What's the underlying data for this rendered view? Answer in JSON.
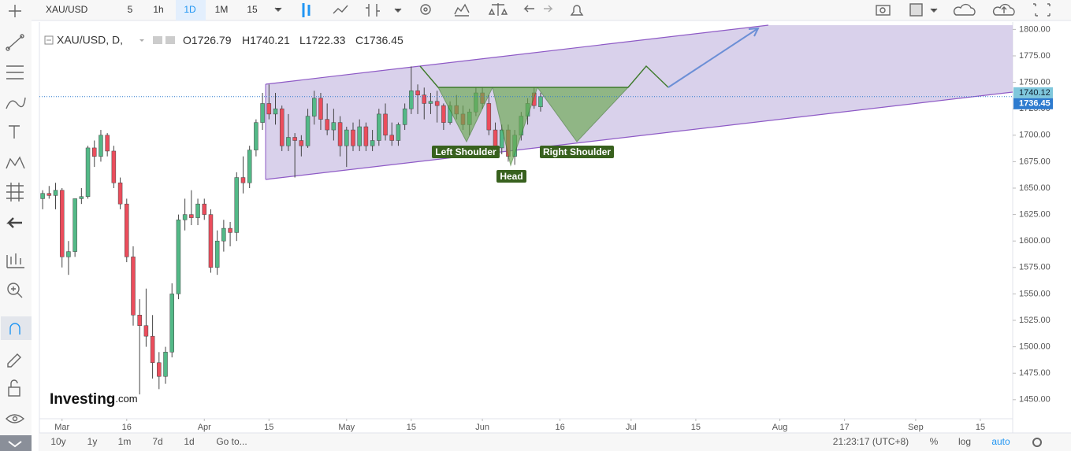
{
  "ui": {
    "symbol": "XAU/USD",
    "intervals": [
      "5",
      "1h",
      "1D",
      "1M",
      "15"
    ],
    "active_interval_index": 2,
    "ranges": [
      "10y",
      "1y",
      "1m",
      "7d",
      "1d",
      "Go to..."
    ],
    "clock": "21:23:17 (UTC+8)",
    "scale_options": [
      "%",
      "log",
      "auto"
    ],
    "logo": "Investing",
    "logo_suffix": ".com"
  },
  "chart_data": {
    "type": "candlestick",
    "title": "XAU/USD, D,",
    "ohlc_prefixes": [
      "O",
      "H",
      "L",
      "C"
    ],
    "up_color": "#53b987",
    "down_color": "#eb4d5c",
    "x": [
      0,
      1,
      2,
      3,
      4,
      5,
      6,
      7,
      8,
      9,
      10,
      11,
      12,
      13,
      14,
      15,
      16,
      17,
      18,
      19,
      20,
      21,
      22,
      23,
      24,
      25,
      26,
      27,
      28,
      29,
      30,
      31,
      32,
      33,
      34,
      35,
      36,
      37,
      38,
      39,
      40,
      41,
      42,
      43,
      44,
      45,
      46,
      47,
      48,
      49,
      50,
      51,
      52,
      53,
      54,
      55,
      56,
      57,
      58,
      59,
      60,
      61,
      62,
      63,
      64,
      65,
      66,
      67,
      68,
      69,
      70,
      71,
      72,
      73,
      74,
      75,
      76,
      77
    ],
    "candles": [
      [
        1640,
        1648,
        1630,
        1645
      ],
      [
        1645,
        1652,
        1640,
        1643
      ],
      [
        1643,
        1655,
        1630,
        1648
      ],
      [
        1648,
        1650,
        1575,
        1585
      ],
      [
        1585,
        1600,
        1568,
        1590
      ],
      [
        1590,
        1640,
        1585,
        1640
      ],
      [
        1640,
        1650,
        1635,
        1642
      ],
      [
        1642,
        1690,
        1640,
        1688
      ],
      [
        1688,
        1695,
        1670,
        1680
      ],
      [
        1680,
        1705,
        1675,
        1700
      ],
      [
        1700,
        1702,
        1680,
        1685
      ],
      [
        1685,
        1690,
        1650,
        1655
      ],
      [
        1655,
        1660,
        1630,
        1635
      ],
      [
        1635,
        1640,
        1580,
        1585
      ],
      [
        1585,
        1595,
        1520,
        1530
      ],
      [
        1530,
        1545,
        1455,
        1520
      ],
      [
        1520,
        1555,
        1500,
        1510
      ],
      [
        1510,
        1530,
        1470,
        1485
      ],
      [
        1485,
        1495,
        1460,
        1472
      ],
      [
        1472,
        1500,
        1465,
        1495
      ],
      [
        1495,
        1560,
        1490,
        1550
      ],
      [
        1550,
        1625,
        1545,
        1620
      ],
      [
        1620,
        1640,
        1610,
        1625
      ],
      [
        1625,
        1648,
        1615,
        1622
      ],
      [
        1622,
        1640,
        1615,
        1635
      ],
      [
        1635,
        1640,
        1620,
        1625
      ],
      [
        1625,
        1630,
        1570,
        1575
      ],
      [
        1575,
        1610,
        1568,
        1600
      ],
      [
        1600,
        1620,
        1590,
        1612
      ],
      [
        1612,
        1618,
        1595,
        1608
      ],
      [
        1608,
        1665,
        1600,
        1660
      ],
      [
        1660,
        1680,
        1645,
        1655
      ],
      [
        1655,
        1690,
        1650,
        1686
      ],
      [
        1686,
        1715,
        1680,
        1712
      ],
      [
        1712,
        1740,
        1705,
        1730
      ],
      [
        1730,
        1748,
        1715,
        1720
      ],
      [
        1720,
        1740,
        1710,
        1725
      ],
      [
        1725,
        1728,
        1685,
        1690
      ],
      [
        1690,
        1720,
        1685,
        1698
      ],
      [
        1698,
        1702,
        1660,
        1695
      ],
      [
        1695,
        1700,
        1680,
        1690
      ],
      [
        1690,
        1725,
        1688,
        1718
      ],
      [
        1718,
        1742,
        1710,
        1735
      ],
      [
        1735,
        1740,
        1705,
        1715
      ],
      [
        1715,
        1730,
        1700,
        1705
      ],
      [
        1705,
        1725,
        1695,
        1712
      ],
      [
        1712,
        1718,
        1680,
        1690
      ],
      [
        1690,
        1708,
        1670,
        1705
      ],
      [
        1705,
        1712,
        1685,
        1690
      ],
      [
        1690,
        1715,
        1685,
        1708
      ],
      [
        1708,
        1712,
        1685,
        1690
      ],
      [
        1690,
        1705,
        1685,
        1695
      ],
      [
        1695,
        1725,
        1690,
        1720
      ],
      [
        1720,
        1730,
        1695,
        1700
      ],
      [
        1700,
        1712,
        1690,
        1695
      ],
      [
        1695,
        1712,
        1690,
        1710
      ],
      [
        1710,
        1730,
        1705,
        1725
      ],
      [
        1725,
        1765,
        1720,
        1742
      ],
      [
        1742,
        1748,
        1720,
        1738
      ],
      [
        1738,
        1745,
        1715,
        1730
      ],
      [
        1730,
        1740,
        1720,
        1732
      ],
      [
        1732,
        1742,
        1712,
        1728
      ],
      [
        1728,
        1730,
        1705,
        1712
      ],
      [
        1712,
        1732,
        1710,
        1728
      ],
      [
        1728,
        1738,
        1715,
        1720
      ],
      [
        1720,
        1728,
        1705,
        1710
      ],
      [
        1710,
        1725,
        1700,
        1722
      ],
      [
        1722,
        1745,
        1718,
        1740
      ],
      [
        1740,
        1745,
        1725,
        1730
      ],
      [
        1730,
        1738,
        1700,
        1705
      ],
      [
        1705,
        1712,
        1680,
        1688
      ],
      [
        1688,
        1710,
        1682,
        1705
      ],
      [
        1705,
        1710,
        1675,
        1680
      ],
      [
        1680,
        1705,
        1672,
        1700
      ],
      [
        1700,
        1722,
        1695,
        1718
      ],
      [
        1718,
        1735,
        1710,
        1730
      ],
      [
        1740,
        1745,
        1725,
        1728
      ],
      [
        1726.79,
        1740.21,
        1722.33,
        1736.45
      ]
    ],
    "xlim": [
      -0.5,
      150
    ],
    "xticks": [
      {
        "value": 3,
        "label": "Mar"
      },
      {
        "value": 13,
        "label": "16"
      },
      {
        "value": 25,
        "label": "Apr"
      },
      {
        "value": 35,
        "label": "15"
      },
      {
        "value": 47,
        "label": "May"
      },
      {
        "value": 57,
        "label": "15"
      },
      {
        "value": 68,
        "label": "Jun"
      },
      {
        "value": 80,
        "label": "16"
      },
      {
        "value": 91,
        "label": "Jul"
      },
      {
        "value": 101,
        "label": "15"
      },
      {
        "value": 114,
        "label": "Aug"
      },
      {
        "value": 124,
        "label": "17"
      },
      {
        "value": 135,
        "label": "Sep"
      },
      {
        "value": 145,
        "label": "15"
      }
    ],
    "ylim": [
      1432,
      1804
    ],
    "yticks": [
      {
        "value": 1800,
        "label": "1800.00"
      },
      {
        "value": 1775,
        "label": "1775.00"
      },
      {
        "value": 1750,
        "label": "1750.00"
      },
      {
        "value": 1725,
        "label": "1725.00"
      },
      {
        "value": 1700,
        "label": "1700.00"
      },
      {
        "value": 1675,
        "label": "1675.00"
      },
      {
        "value": 1650,
        "label": "1650.00"
      },
      {
        "value": 1625,
        "label": "1625.00"
      },
      {
        "value": 1600,
        "label": "1600.00"
      },
      {
        "value": 1575,
        "label": "1575.00"
      },
      {
        "value": 1550,
        "label": "1550.00"
      },
      {
        "value": 1525,
        "label": "1525.00"
      },
      {
        "value": 1500,
        "label": "1500.00"
      },
      {
        "value": 1475,
        "label": "1475.00"
      },
      {
        "value": 1450,
        "label": "1450.00"
      }
    ],
    "price_labels": [
      1740.12,
      1736.45
    ],
    "annotations": [
      "Left Shoulder",
      "Head",
      "Right Shoulder"
    ]
  }
}
